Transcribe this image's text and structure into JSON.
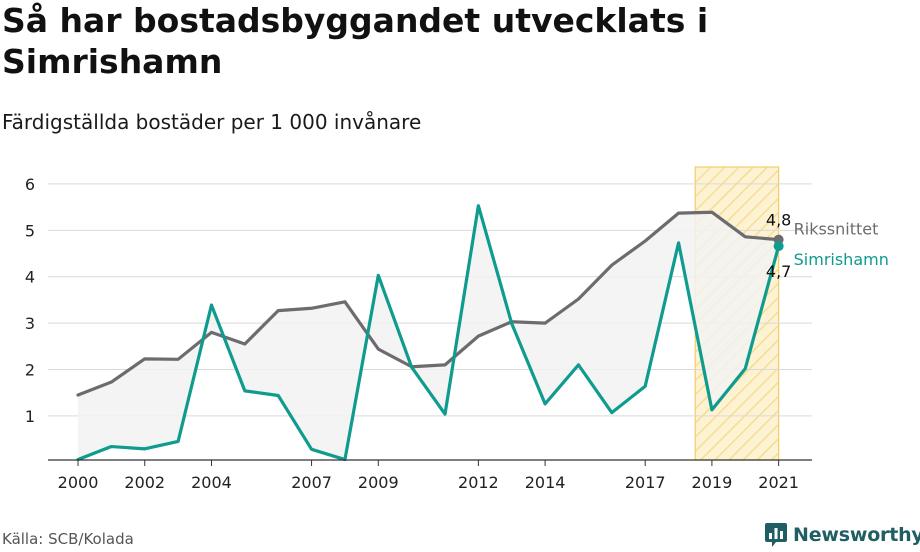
{
  "header": {
    "title": "Så har bostadsbyggandet utvecklats i Simrishamn",
    "subtitle": "Färdigställda bostäder per 1 000 invånare"
  },
  "footer": {
    "source": "Källa: SCB/Kolada",
    "brand": "Newsworthy"
  },
  "colors": {
    "riks": "#6d6b70",
    "simrishamn": "#0f9b8e",
    "highlight_fill": "#fdf3d3",
    "highlight_stroke": "#f3cd6b",
    "band_fill": "#f2f2f2",
    "brand": "#1f5f63"
  },
  "chart_data": {
    "type": "line",
    "title": "Så har bostadsbyggandet utvecklats i Simrishamn",
    "subtitle": "Färdigställda bostäder per 1 000 invånare",
    "x": [
      2000,
      2001,
      2002,
      2003,
      2004,
      2005,
      2006,
      2007,
      2008,
      2009,
      2010,
      2011,
      2012,
      2013,
      2014,
      2015,
      2016,
      2017,
      2018,
      2019,
      2020,
      2021
    ],
    "x_tick_labels": [
      "2000",
      "2002",
      "2004",
      "2007",
      "2009",
      "2012",
      "2014",
      "2017",
      "2019",
      "2021"
    ],
    "y_ticks": [
      1,
      2,
      3,
      4,
      5,
      6
    ],
    "ylim": [
      0.05,
      6.3
    ],
    "xlim": [
      1999.1,
      2022.0
    ],
    "highlight_range": [
      2018.5,
      2021.0
    ],
    "grid": true,
    "series": [
      {
        "name": "Rikssnittet",
        "end_label": "4,8",
        "values": [
          1.45,
          1.73,
          2.23,
          2.22,
          2.8,
          2.55,
          3.27,
          3.32,
          3.46,
          2.44,
          2.06,
          2.1,
          2.72,
          3.03,
          3.0,
          3.52,
          4.25,
          4.77,
          5.37,
          5.39,
          4.86,
          4.8
        ]
      },
      {
        "name": "Simrishamn",
        "end_label": "4,7",
        "values": [
          0.06,
          0.34,
          0.29,
          0.45,
          3.39,
          1.54,
          1.44,
          0.28,
          0.06,
          4.03,
          2.05,
          1.04,
          5.53,
          2.99,
          1.26,
          2.1,
          1.07,
          1.64,
          4.73,
          1.13,
          2.02,
          4.66
        ]
      }
    ]
  }
}
